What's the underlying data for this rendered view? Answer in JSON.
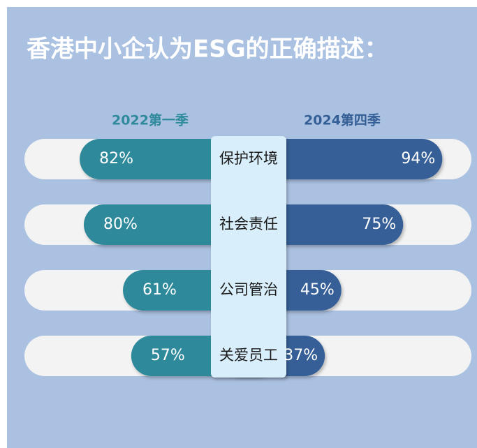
{
  "chart_data": {
    "type": "butterfly",
    "title": "香港中小企认为ESG的正确描述：",
    "categories": [
      "保护环境",
      "社会责任",
      "公司管治",
      "关爱员工"
    ],
    "series": [
      {
        "name": "2022第一季",
        "color": "#2f8a9b",
        "values": [
          82,
          80,
          61,
          57
        ],
        "value_labels": [
          "82%",
          "80%",
          "61%",
          "57%"
        ]
      },
      {
        "name": "2024第四季",
        "color": "#345f96",
        "values": [
          94,
          75,
          45,
          37
        ],
        "value_labels": [
          "94%",
          "75%",
          "45%",
          "37%"
        ]
      }
    ]
  }
}
